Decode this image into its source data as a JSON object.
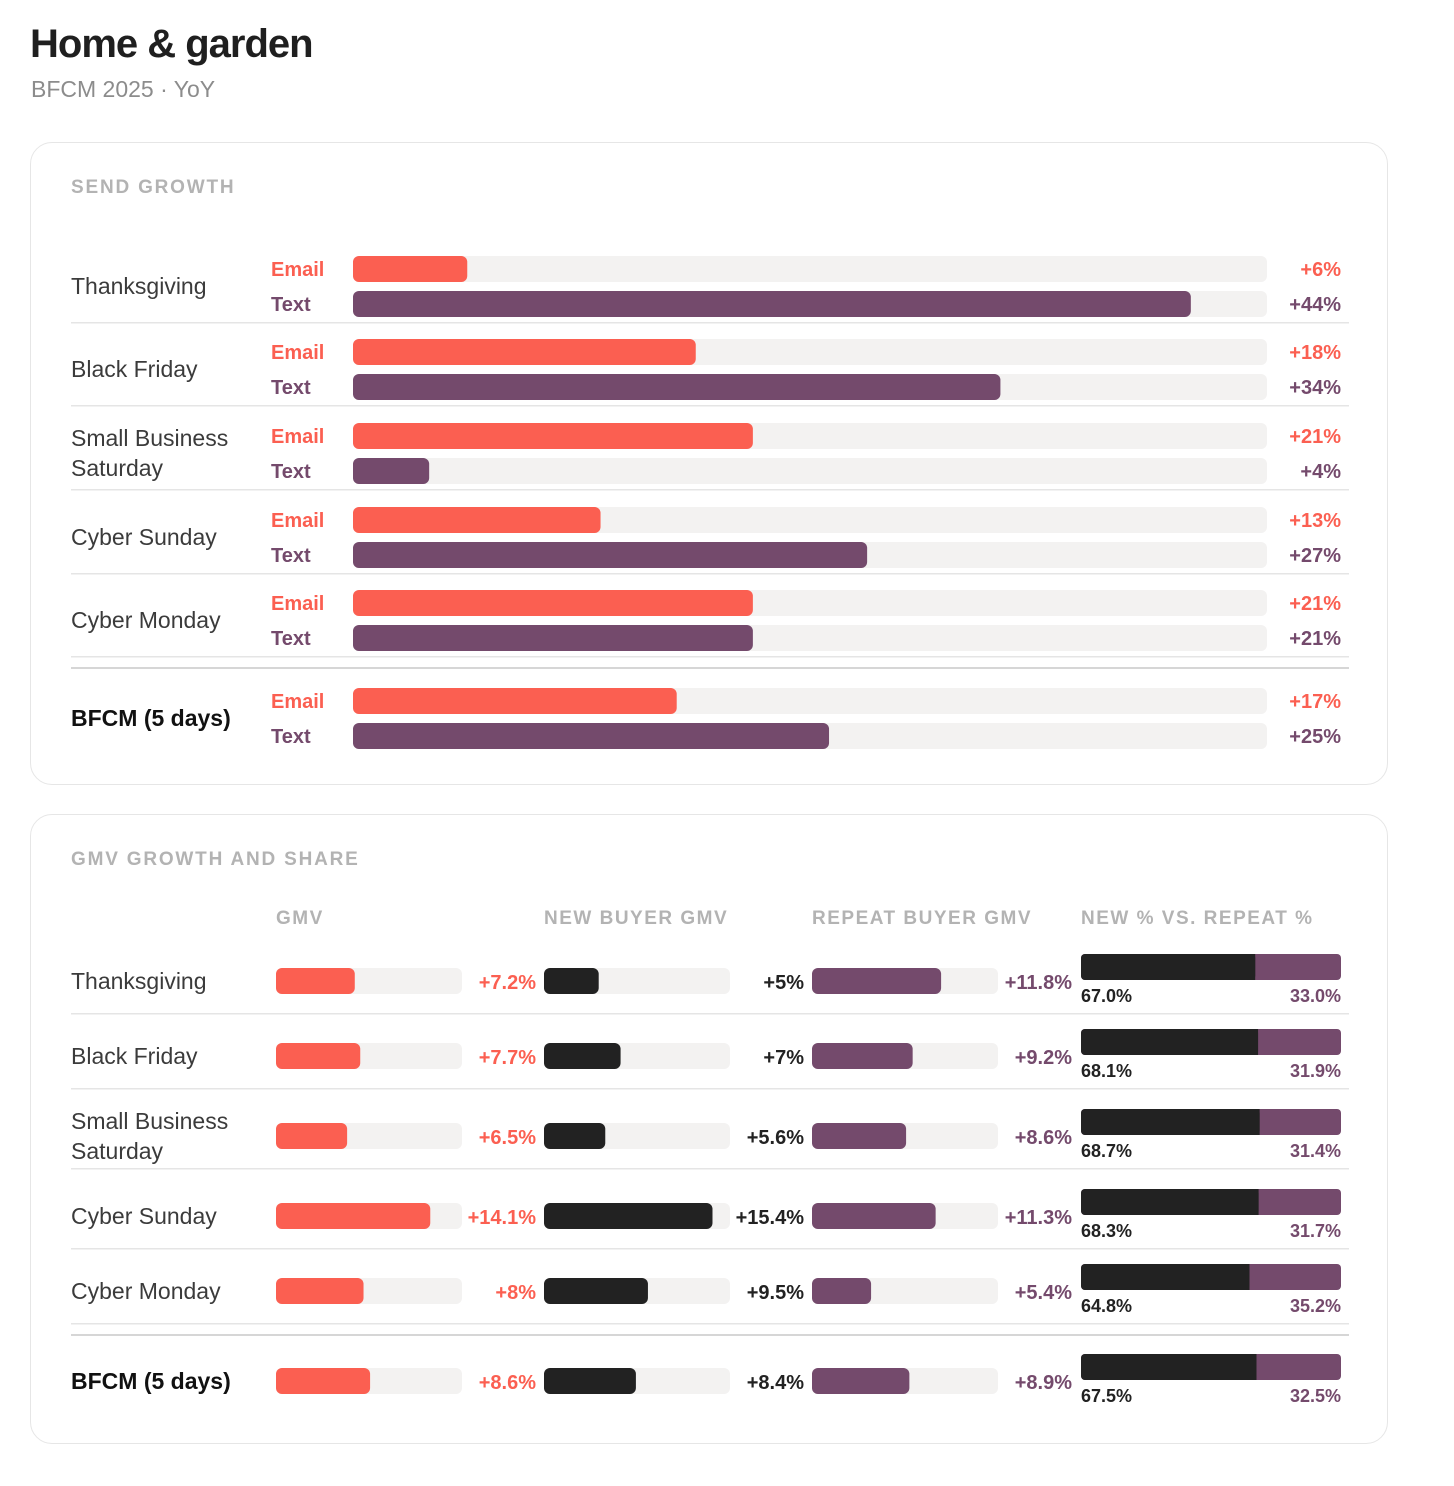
{
  "header": {
    "title": "Home & garden",
    "subtitle": "BFCM 2025 · YoY"
  },
  "colors": {
    "email": "#fb5f51",
    "text": "#744a6c",
    "new": "#222222",
    "track": "#f3f2f1",
    "divider": "#e5e5e5"
  },
  "send_section": {
    "title": "SEND GROWTH"
  },
  "gmv_section": {
    "title": "GMV GROWTH AND SHARE",
    "columns": [
      "GMV",
      "NEW BUYER GMV",
      "REPEAT BUYER GMV",
      "NEW % VS. REPEAT %"
    ]
  },
  "chart_data": [
    {
      "type": "bar",
      "title": "SEND GROWTH",
      "categories": [
        "Thanksgiving",
        "Black Friday",
        "Small Business Saturday",
        "Cyber Sunday",
        "Cyber Monday",
        "BFCM (5 days)"
      ],
      "series": [
        {
          "name": "Email",
          "values": [
            6,
            18,
            21,
            13,
            21,
            17
          ],
          "labels": [
            "+6%",
            "+18%",
            "+21%",
            "+13%",
            "+21%",
            "+17%"
          ]
        },
        {
          "name": "Text",
          "values": [
            44,
            34,
            4,
            27,
            21,
            25
          ],
          "labels": [
            "+44%",
            "+34%",
            "+4%",
            "+27%",
            "+21%",
            "+25%"
          ]
        }
      ],
      "unit": "%",
      "xlim": [
        0,
        48
      ]
    },
    {
      "type": "bar",
      "title": "GMV GROWTH AND SHARE",
      "categories": [
        "Thanksgiving",
        "Black Friday",
        "Small Business Saturday",
        "Cyber Sunday",
        "Cyber Monday",
        "BFCM (5 days)"
      ],
      "series": [
        {
          "name": "GMV",
          "values": [
            7.2,
            7.7,
            6.5,
            14.1,
            8,
            8.6
          ],
          "labels": [
            "+7.2%",
            "+7.7%",
            "+6.5%",
            "+14.1%",
            "+8%",
            "+8.6%"
          ]
        },
        {
          "name": "NEW BUYER GMV",
          "values": [
            5,
            7,
            5.6,
            15.4,
            9.5,
            8.4
          ],
          "labels": [
            "+5%",
            "+7%",
            "+5.6%",
            "+15.4%",
            "+9.5%",
            "+8.4%"
          ]
        },
        {
          "name": "REPEAT BUYER GMV",
          "values": [
            11.8,
            9.2,
            8.6,
            11.3,
            5.4,
            8.9
          ],
          "labels": [
            "+11.8%",
            "+9.2%",
            "+8.6%",
            "+11.3%",
            "+5.4%",
            "+8.9%"
          ]
        }
      ],
      "share": {
        "name": "NEW % VS. REPEAT %",
        "new": [
          67.0,
          68.1,
          68.7,
          68.3,
          64.8,
          67.5
        ],
        "repeat": [
          33.0,
          31.9,
          31.4,
          31.7,
          35.2,
          32.5
        ],
        "new_labels": [
          "67.0%",
          "68.1%",
          "68.7%",
          "68.3%",
          "64.8%",
          "67.5%"
        ],
        "repeat_labels": [
          "33.0%",
          "31.9%",
          "31.4%",
          "31.7%",
          "35.2%",
          "32.5%"
        ]
      },
      "unit": "%",
      "xlim": [
        0,
        17
      ]
    }
  ]
}
